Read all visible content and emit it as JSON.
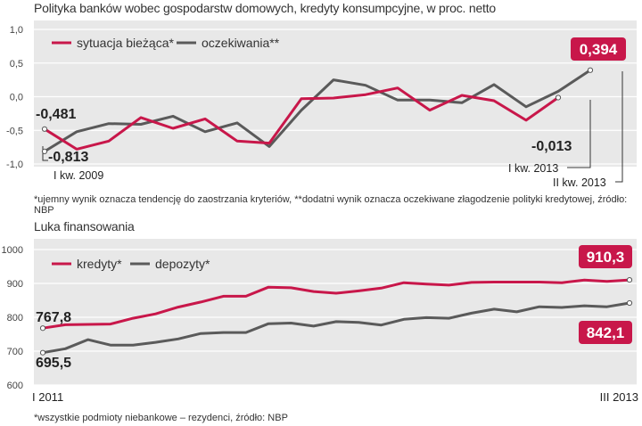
{
  "chart_data": [
    {
      "type": "line",
      "title": "Polityka banków wobec gospodarstw domowych, kredyty konsumpcyjne, w proc. netto",
      "footnote": "*ujemny wynik oznacza tendencję do zaostrzania kryteriów, **dodatni wynik oznacza oczekiwane złagodzenie polityki kredytowej, źródło: NBP",
      "ylim": [
        -1.0,
        1.0
      ],
      "yticks": [
        "1,0",
        "0,5",
        "0,0",
        "-0,5",
        "-1,0"
      ],
      "ytick_values": [
        1.0,
        0.5,
        0.0,
        -0.5,
        -1.0
      ],
      "num_points": 19,
      "series": [
        {
          "name": "sytuacja bieżąca*",
          "color": "#c8174a",
          "values": [
            -0.481,
            -0.78,
            -0.66,
            -0.31,
            -0.47,
            -0.33,
            -0.66,
            -0.69,
            -0.03,
            -0.02,
            0.03,
            0.13,
            -0.2,
            0.02,
            -0.06,
            -0.35,
            -0.013,
            null,
            null
          ]
        },
        {
          "name": "oczekiwania**",
          "color": "#5a5a5a",
          "values": [
            -0.813,
            -0.52,
            -0.4,
            -0.41,
            -0.29,
            -0.52,
            -0.39,
            -0.74,
            -0.2,
            0.25,
            0.17,
            -0.05,
            -0.05,
            -0.09,
            0.18,
            -0.15,
            0.08,
            0.394,
            null
          ]
        }
      ],
      "annotations": {
        "start_current": "-0,481",
        "start_expect": "-0,813",
        "end_current": "-0,013",
        "end_expect": "0,394",
        "start_period": "I kw. 2009",
        "end_current_period": "I kw. 2013",
        "end_expect_period": "II kw. 2013"
      }
    },
    {
      "type": "line",
      "title": "Luka finansowania",
      "footnote": "*wszystkie podmioty niebankowe – rezydenci, źródło: NBP",
      "ylim": [
        600,
        1000
      ],
      "yticks": [
        "1000",
        "900",
        "800",
        "700",
        "600"
      ],
      "ytick_values": [
        1000,
        900,
        800,
        700,
        600
      ],
      "xlabels": [
        "I 2011",
        "III 2013"
      ],
      "series": [
        {
          "name": "kredyty*",
          "color": "#c8174a",
          "values": [
            767.8,
            778,
            779,
            780,
            797,
            810,
            830,
            845,
            862,
            862,
            889,
            887,
            876,
            871,
            878,
            886,
            902,
            898,
            895,
            903,
            904,
            904,
            904,
            902,
            910,
            906,
            910.3
          ]
        },
        {
          "name": "depozyty*",
          "color": "#5a5a5a",
          "values": [
            695.5,
            707,
            734,
            718,
            718,
            726,
            736,
            752,
            755,
            755,
            781,
            783,
            774,
            787,
            785,
            777,
            794,
            799,
            797,
            812,
            824,
            816,
            831,
            829,
            834,
            831,
            842.1
          ]
        }
      ],
      "annotations": {
        "start_credit": "767,8",
        "start_deposit": "695,5",
        "end_credit": "910,3",
        "end_deposit": "842,1"
      }
    }
  ]
}
